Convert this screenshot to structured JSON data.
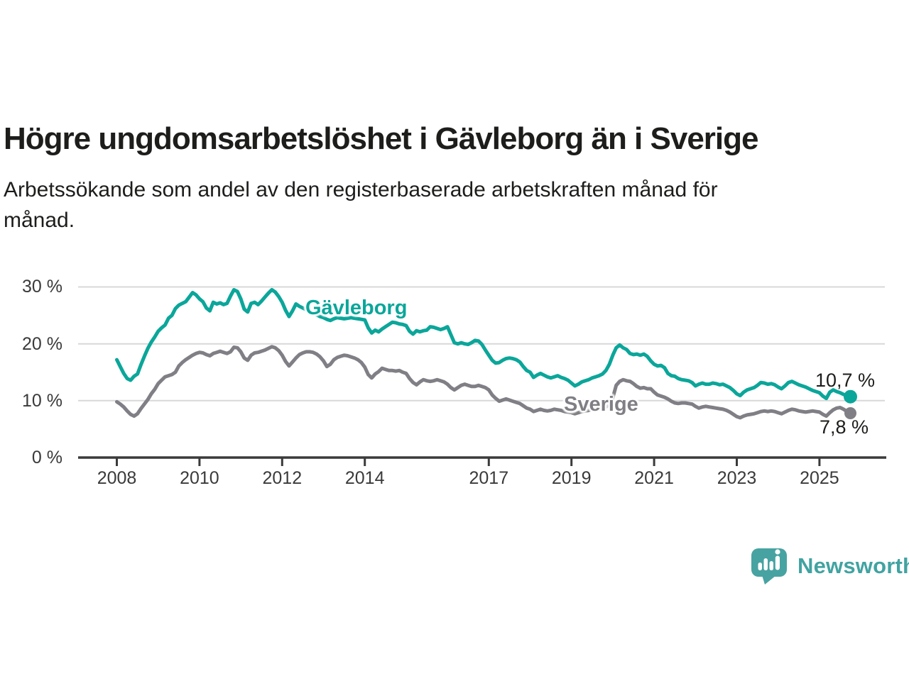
{
  "header": {
    "title": "Högre ungdomsarbetslöshet i Gävleborg än i Sverige",
    "subtitle_lines": [
      "Arbetssökande som andel av den registerbaserade arbetskraften månad för",
      "månad."
    ]
  },
  "footer": {
    "brand": "Newsworthy"
  },
  "colors": {
    "gavleborg": "#0ba69a",
    "sverige": "#7f7f85",
    "grid": "#d8d8d8",
    "axis": "#3a3a3a",
    "tick_text": "#3a3a3a",
    "text": "#1d1d1b",
    "brand": "#41a3a1"
  },
  "chart_data": {
    "type": "line",
    "title": "Högre ungdomsarbetslöshet i Gävleborg än i Sverige",
    "x_start": "2008-01",
    "x_end": "2025-10",
    "x_interval": "monthly",
    "x_ticks": [
      2008,
      2010,
      2012,
      2014,
      2017,
      2019,
      2021,
      2023,
      2025
    ],
    "x_tick_labels": [
      "2008",
      "2010",
      "2012",
      "2014",
      "2017",
      "2019",
      "2021",
      "2023",
      "2025"
    ],
    "y_ticks": [
      0,
      10,
      20,
      30
    ],
    "y_tick_labels": [
      "0 %",
      "10 %",
      "20 %",
      "30 %"
    ],
    "ylim": [
      0,
      31
    ],
    "grid": true,
    "legend_position": "inline-labels",
    "series": [
      {
        "name": "Gävleborg",
        "color": "#0ba69a",
        "end_label": "10,7 %",
        "last_value": 10.7,
        "values": [
          17.2,
          16.0,
          14.8,
          13.9,
          13.6,
          14.3,
          14.7,
          16.3,
          17.8,
          19.2,
          20.3,
          21.2,
          22.2,
          22.8,
          23.3,
          24.5,
          25.0,
          26.2,
          26.8,
          27.1,
          27.4,
          28.2,
          29.0,
          28.6,
          27.9,
          27.4,
          26.3,
          25.8,
          27.3,
          27.0,
          27.2,
          26.9,
          27.1,
          28.4,
          29.5,
          29.2,
          27.9,
          26.1,
          25.6,
          27.1,
          27.3,
          26.9,
          27.5,
          28.2,
          28.9,
          29.5,
          29.1,
          28.3,
          27.3,
          25.9,
          24.8,
          25.8,
          27.0,
          26.6,
          26.3,
          26.0,
          25.7,
          25.4,
          25.1,
          24.8,
          24.6,
          24.3,
          24.1,
          24.4,
          24.6,
          24.5,
          24.4,
          24.5,
          24.6,
          24.5,
          24.4,
          24.3,
          24.2,
          22.8,
          21.9,
          22.4,
          22.1,
          22.6,
          23.0,
          23.4,
          23.8,
          23.7,
          23.5,
          23.4,
          23.2,
          22.2,
          21.7,
          22.3,
          22.1,
          22.3,
          22.4,
          23.0,
          22.9,
          22.7,
          22.5,
          22.7,
          23.0,
          21.6,
          20.2,
          20.0,
          20.2,
          20.0,
          19.9,
          20.2,
          20.6,
          20.5,
          19.9,
          18.9,
          18.0,
          17.1,
          16.6,
          16.7,
          17.1,
          17.4,
          17.5,
          17.4,
          17.2,
          16.8,
          16.0,
          15.3,
          15.0,
          14.1,
          14.5,
          14.8,
          14.5,
          14.2,
          14.0,
          14.2,
          14.4,
          14.1,
          13.9,
          13.6,
          13.1,
          12.6,
          12.9,
          13.3,
          13.5,
          13.7,
          14.0,
          14.2,
          14.4,
          14.7,
          15.3,
          16.4,
          18.0,
          19.3,
          19.8,
          19.3,
          19.0,
          18.3,
          18.1,
          18.2,
          18.0,
          18.2,
          17.8,
          17.0,
          16.4,
          16.1,
          16.2,
          15.8,
          14.8,
          14.4,
          14.3,
          13.9,
          13.7,
          13.6,
          13.5,
          13.2,
          12.6,
          12.9,
          13.1,
          12.9,
          12.9,
          13.1,
          13.0,
          12.8,
          12.9,
          12.6,
          12.3,
          11.8,
          11.2,
          10.9,
          11.5,
          11.9,
          12.1,
          12.3,
          12.7,
          13.2,
          13.1,
          12.9,
          13.0,
          12.8,
          12.4,
          12.1,
          12.6,
          13.2,
          13.4,
          13.1,
          12.8,
          12.6,
          12.4,
          12.1,
          11.8,
          11.6,
          11.4,
          10.8,
          10.4,
          11.5,
          11.9,
          11.6,
          11.4,
          11.1,
          10.9,
          10.7
        ]
      },
      {
        "name": "Sverige",
        "color": "#7f7f85",
        "end_label": "7,8 %",
        "last_value": 7.8,
        "values": [
          9.8,
          9.4,
          8.9,
          8.2,
          7.6,
          7.3,
          7.7,
          8.6,
          9.4,
          10.2,
          11.2,
          12.0,
          13.0,
          13.6,
          14.2,
          14.4,
          14.6,
          15.0,
          16.1,
          16.7,
          17.2,
          17.6,
          18.0,
          18.3,
          18.5,
          18.4,
          18.1,
          17.9,
          18.3,
          18.5,
          18.7,
          18.5,
          18.3,
          18.6,
          19.4,
          19.3,
          18.6,
          17.5,
          17.1,
          18.0,
          18.4,
          18.5,
          18.7,
          18.9,
          19.2,
          19.5,
          19.3,
          18.8,
          18.0,
          16.9,
          16.1,
          16.8,
          17.5,
          18.1,
          18.4,
          18.6,
          18.6,
          18.5,
          18.2,
          17.7,
          17.0,
          16.0,
          16.4,
          17.2,
          17.6,
          17.8,
          18.0,
          17.9,
          17.7,
          17.5,
          17.2,
          16.7,
          15.9,
          14.6,
          14.0,
          14.7,
          15.1,
          15.7,
          15.5,
          15.3,
          15.3,
          15.2,
          15.3,
          15.0,
          14.8,
          13.9,
          13.2,
          12.8,
          13.3,
          13.7,
          13.5,
          13.4,
          13.5,
          13.7,
          13.5,
          13.3,
          12.9,
          12.3,
          11.9,
          12.3,
          12.7,
          12.9,
          12.7,
          12.5,
          12.5,
          12.7,
          12.5,
          12.3,
          11.9,
          11.0,
          10.4,
          9.9,
          10.1,
          10.3,
          10.1,
          9.9,
          9.7,
          9.5,
          9.1,
          8.7,
          8.5,
          8.1,
          8.3,
          8.5,
          8.3,
          8.2,
          8.3,
          8.5,
          8.4,
          8.3,
          8.1,
          8.0,
          7.9,
          7.7,
          7.9,
          8.1,
          8.2,
          8.3,
          8.5,
          8.6,
          8.6,
          8.7,
          8.9,
          9.3,
          10.5,
          12.7,
          13.4,
          13.7,
          13.5,
          13.4,
          13.0,
          12.5,
          12.2,
          12.3,
          12.1,
          12.1,
          11.5,
          11.0,
          10.8,
          10.6,
          10.3,
          9.9,
          9.6,
          9.5,
          9.6,
          9.6,
          9.5,
          9.4,
          9.0,
          8.7,
          8.9,
          9.0,
          8.9,
          8.8,
          8.7,
          8.6,
          8.5,
          8.3,
          8.0,
          7.6,
          7.2,
          7.0,
          7.3,
          7.5,
          7.6,
          7.7,
          7.9,
          8.1,
          8.2,
          8.1,
          8.2,
          8.1,
          7.9,
          7.7,
          8.0,
          8.3,
          8.5,
          8.4,
          8.2,
          8.1,
          8.0,
          8.1,
          8.2,
          8.1,
          8.0,
          7.6,
          7.3,
          7.9,
          8.4,
          8.7,
          8.8,
          8.5,
          8.1,
          7.8
        ]
      }
    ]
  }
}
